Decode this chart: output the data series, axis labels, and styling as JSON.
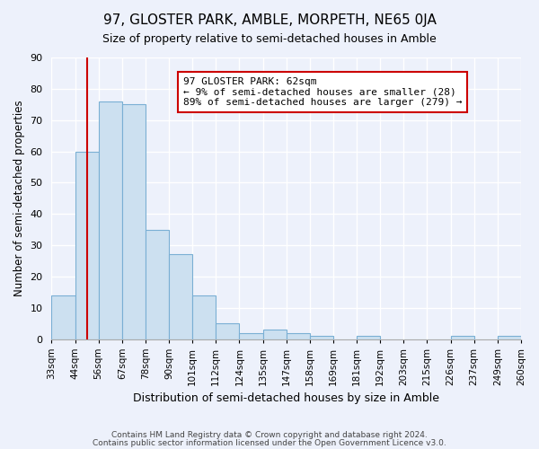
{
  "title": "97, GLOSTER PARK, AMBLE, MORPETH, NE65 0JA",
  "subtitle": "Size of property relative to semi-detached houses in Amble",
  "xlabel": "Distribution of semi-detached houses by size in Amble",
  "ylabel": "Number of semi-detached properties",
  "bin_labels": [
    "33sqm",
    "44sqm",
    "56sqm",
    "67sqm",
    "78sqm",
    "90sqm",
    "101sqm",
    "112sqm",
    "124sqm",
    "135sqm",
    "147sqm",
    "158sqm",
    "169sqm",
    "181sqm",
    "192sqm",
    "203sqm",
    "215sqm",
    "226sqm",
    "237sqm",
    "249sqm",
    "260sqm"
  ],
  "bar_heights": [
    14,
    60,
    76,
    75,
    35,
    27,
    14,
    5,
    2,
    3,
    2,
    1,
    0,
    1,
    0,
    0,
    0,
    1,
    0,
    1
  ],
  "bar_color": "#cce0f0",
  "bar_edge_color": "#7aafd4",
  "vline_position": 1.5,
  "vline_color": "#cc0000",
  "annotation_title": "97 GLOSTER PARK: 62sqm",
  "annotation_line1": "← 9% of semi-detached houses are smaller (28)",
  "annotation_line2": "89% of semi-detached houses are larger (279) →",
  "annotation_box_facecolor": "#ffffff",
  "annotation_box_edgecolor": "#cc0000",
  "footer1": "Contains HM Land Registry data © Crown copyright and database right 2024.",
  "footer2": "Contains public sector information licensed under the Open Government Licence v3.0.",
  "ylim": [
    0,
    90
  ],
  "yticks": [
    0,
    10,
    20,
    30,
    40,
    50,
    60,
    70,
    80,
    90
  ],
  "bg_color": "#edf1fb",
  "plot_bg_color": "#edf1fb",
  "title_fontsize": 11,
  "subtitle_fontsize": 9,
  "ylabel_fontsize": 8.5,
  "xlabel_fontsize": 9,
  "tick_fontsize": 8,
  "xtick_fontsize": 7.5
}
